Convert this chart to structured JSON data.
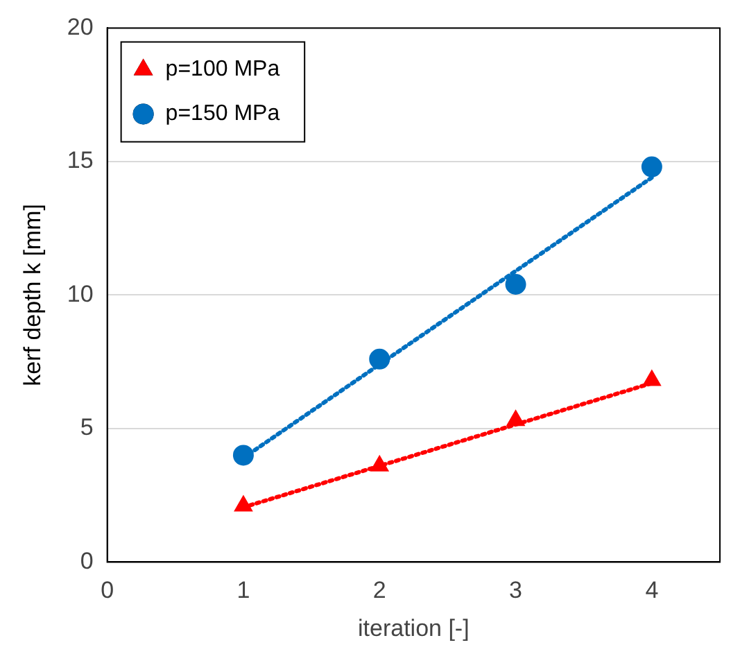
{
  "chart_data": {
    "type": "scatter",
    "xlabel": "iteration [-]",
    "ylabel": "kerf depth k [mm]",
    "xlim": [
      0,
      4.5
    ],
    "xticks": [
      0,
      1,
      2,
      3,
      4
    ],
    "ylim": [
      0,
      20
    ],
    "yticks": [
      0,
      5,
      10,
      15,
      20
    ],
    "grid": "y",
    "legend": "top left",
    "series": [
      {
        "name": "p=100 MPa",
        "color": "#ff0000",
        "marker": "triangle",
        "x": [
          1,
          2,
          3,
          4
        ],
        "values": [
          2.1,
          3.6,
          5.3,
          6.8
        ]
      },
      {
        "name": "p=150 MPa",
        "color": "#0070c0",
        "marker": "circle",
        "x": [
          1,
          2,
          3,
          4
        ],
        "values": [
          4.0,
          7.6,
          10.4,
          14.8
        ]
      },
      {
        "type": "line",
        "color": "#ff0000",
        "marker": "none",
        "line_style": "dotted",
        "x": [
          1,
          4
        ],
        "values": [
          2.05,
          6.7
        ]
      },
      {
        "type": "line",
        "color": "#0070c0",
        "marker": "none",
        "line_style": "dotted",
        "x": [
          1,
          4
        ],
        "values": [
          3.9,
          14.4
        ]
      }
    ]
  }
}
